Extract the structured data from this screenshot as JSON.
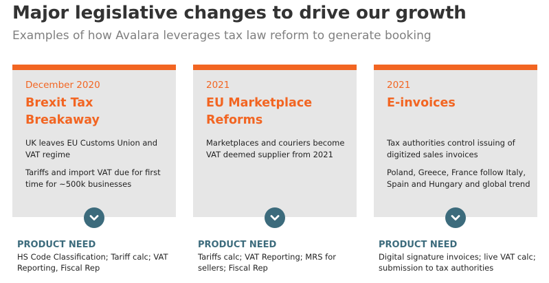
{
  "header": {
    "title": "Major legislative changes to drive our growth",
    "subtitle": "Examples of how Avalara leverages tax law reform to generate booking"
  },
  "colors": {
    "accent": "#f26522",
    "teal": "#3c6b7c",
    "card_bg": "#e6e6e6"
  },
  "cards": [
    {
      "date": "December 2020",
      "heading": "Brexit Tax Breakaway",
      "body": [
        "UK leaves EU Customs Union and VAT regime",
        "Tariffs and import VAT due for first time for ~500k businesses"
      ],
      "icon": "chevron-down-icon",
      "need_label": "PRODUCT NEED",
      "need_text": "HS Code Classification; Tariff calc; VAT Reporting, Fiscal Rep"
    },
    {
      "date": "2021",
      "heading": "EU Marketplace Reforms",
      "body": [
        "Marketplaces and couriers become VAT deemed supplier from 2021"
      ],
      "icon": "chevron-down-icon",
      "need_label": "PRODUCT NEED",
      "need_text": "Tariffs calc; VAT Reporting; MRS for sellers; Fiscal Rep"
    },
    {
      "date": "2021",
      "heading": "E-invoices",
      "body": [
        "Tax authorities control issuing of digitized sales invoices",
        "Poland, Greece, France follow Italy, Spain and Hungary and global trend"
      ],
      "icon": "chevron-down-icon",
      "need_label": "PRODUCT NEED",
      "need_text": "Digital signature invoices; live VAT calc; submission to tax authorities"
    }
  ]
}
